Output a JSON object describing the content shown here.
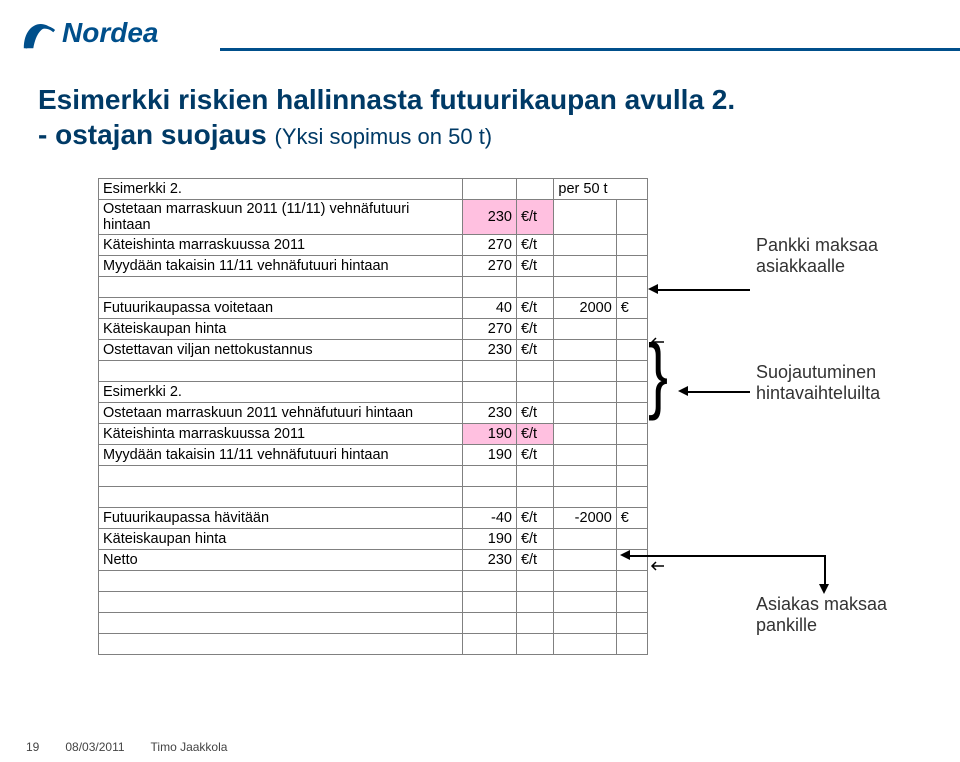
{
  "brand": {
    "name": "Nordea",
    "color": "#004f8b"
  },
  "title": "Esimerkki riskien hallinnasta futuurikaupan avulla 2.",
  "subtitlePrefix": "- ostajan suojaus",
  "subtitleNote": "(Yksi sopimus on 50 t)",
  "table": {
    "rows": [
      {
        "label": "Esimerkki 2.",
        "val": "",
        "unit": "",
        "val2": "per 50 t",
        "unit2": "",
        "v2span": true
      },
      {
        "label": "Ostetaan marraskuun 2011 (11/11) vehnäfutuuri hintaan",
        "val": "230",
        "unit": "€/t",
        "pink": true
      },
      {
        "label": "Käteishinta marraskuussa 2011",
        "val": "270",
        "unit": "€/t"
      },
      {
        "label": "Myydään takaisin 11/11 vehnäfutuuri hintaan",
        "val": "270",
        "unit": "€/t"
      },
      {
        "blank": true
      },
      {
        "label": "Futuurikaupassa voitetaan",
        "val": "40",
        "unit": "€/t",
        "val2": "2000",
        "unit2": "€"
      },
      {
        "label": "Käteiskaupan hinta",
        "val": "270",
        "unit": "€/t"
      },
      {
        "label": "Ostettavan viljan nettokustannus",
        "val": "230",
        "unit": "€/t"
      },
      {
        "blank": true
      },
      {
        "label": "Esimerkki 2."
      },
      {
        "label": "Ostetaan marraskuun 2011 vehnäfutuuri hintaan",
        "val": "230",
        "unit": "€/t"
      },
      {
        "label": "Käteishinta marraskuussa 2011",
        "val": "190",
        "unit": "€/t",
        "pink": true
      },
      {
        "label": "Myydään takaisin 11/11 vehnäfutuuri hintaan",
        "val": "190",
        "unit": "€/t"
      },
      {
        "blank": true
      },
      {
        "blank": true
      },
      {
        "label": "Futuurikaupassa hävitään",
        "val": "-40",
        "unit": "€/t",
        "val2": "-2000",
        "unit2": "€"
      },
      {
        "label": "Käteiskaupan hinta",
        "val": "190",
        "unit": "€/t"
      },
      {
        "label": "Netto",
        "val": "230",
        "unit": "€/t"
      },
      {
        "blank": true
      },
      {
        "blank": true
      },
      {
        "blank": true
      },
      {
        "blank": true
      }
    ]
  },
  "annotations": {
    "a1": "Pankki maksaa asiakkaalle",
    "a2": "Suojautuminen hintavaihteluilta",
    "a3": "Asiakas maksaa pankille"
  },
  "footer": {
    "page": "19",
    "date": "08/03/2011",
    "author": "Timo Jaakkola"
  }
}
